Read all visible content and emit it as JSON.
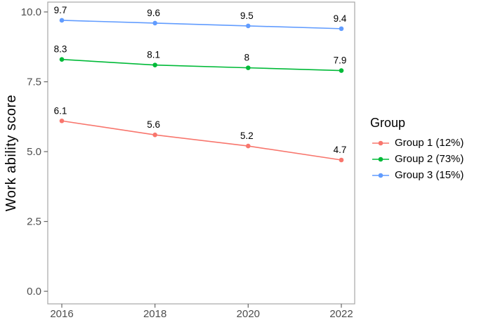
{
  "chart_data": {
    "type": "line",
    "title": "",
    "xlabel": "",
    "ylabel": "Work ability score",
    "x": [
      2016,
      2018,
      2020,
      2022
    ],
    "x_tick_labels": [
      "2016",
      "2018",
      "2020",
      "2022"
    ],
    "y_ticks": [
      0,
      2.5,
      5,
      7.5,
      10
    ],
    "y_tick_labels": [
      "0.0",
      "2.5",
      "5.0",
      "7.5",
      "10.0"
    ],
    "ylim": [
      0,
      10
    ],
    "xlim": [
      2016,
      2022
    ],
    "grid": false,
    "legend_position": "right",
    "legend_title": "Group",
    "series": [
      {
        "name": "Group 1 (12%)",
        "color": "#F8766D",
        "values": [
          6.1,
          5.6,
          5.2,
          4.7
        ],
        "point_labels": [
          "6.1",
          "5.6",
          "5.2",
          "4.7"
        ]
      },
      {
        "name": "Group 2 (73%)",
        "color": "#00BA38",
        "values": [
          8.3,
          8.1,
          8,
          7.9
        ],
        "point_labels": [
          "8.3",
          "8.1",
          "8",
          "7.9"
        ]
      },
      {
        "name": "Group 3 (15%)",
        "color": "#619CFF",
        "values": [
          9.7,
          9.6,
          9.5,
          9.4
        ],
        "point_labels": [
          "9.7",
          "9.6",
          "9.5",
          "9.4"
        ]
      }
    ]
  },
  "style": {
    "background": "#ffffff",
    "panel_border_color": "#a6a6a6",
    "tick_color": "#666666",
    "axis_text_color": "#4d4d4d",
    "axis_title_color": "#000000",
    "point_label_color": "#000000"
  }
}
